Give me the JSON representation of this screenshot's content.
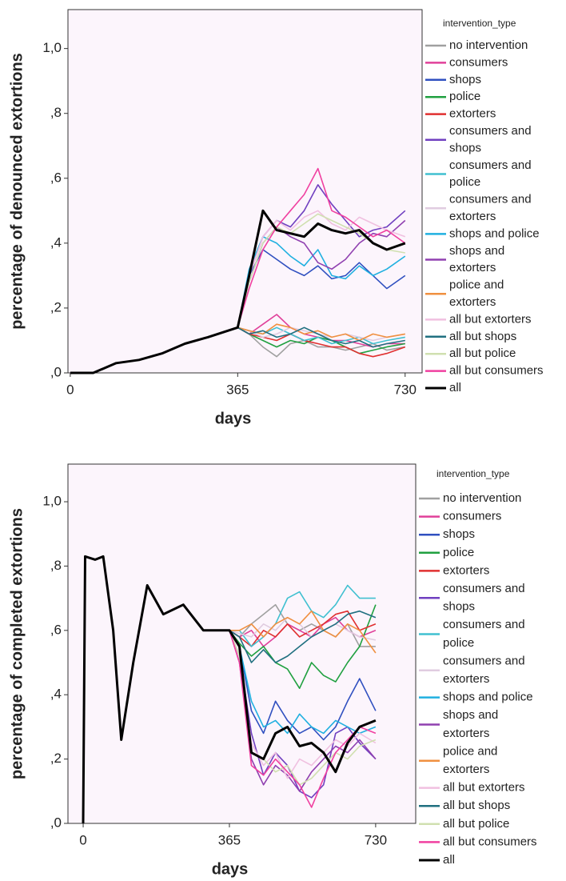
{
  "chart_data": [
    {
      "type": "line",
      "y_label": "percentage of denounced extortions",
      "x_label": "days",
      "legend_title": "intervention_type",
      "xlim": [
        -5,
        767
      ],
      "ylim": [
        0,
        1.12
      ],
      "xticks": [
        0,
        365,
        730
      ],
      "yticks": [
        {
          "value": 0,
          "label": ",0"
        },
        {
          "value": 0.2,
          "label": ",2"
        },
        {
          "value": 0.4,
          "label": ",4"
        },
        {
          "value": 0.6,
          "label": ",6"
        },
        {
          "value": 0.8,
          "label": ",8"
        },
        {
          "value": 1.0,
          "label": "1,0"
        }
      ],
      "x": [
        0,
        50,
        100,
        150,
        200,
        250,
        300,
        365,
        390,
        420,
        450,
        480,
        510,
        540,
        570,
        600,
        630,
        660,
        690,
        730
      ],
      "series": [
        {
          "name": "no intervention",
          "color": "#a0a0a0",
          "values": [
            0,
            0,
            0.03,
            0.04,
            0.06,
            0.09,
            0.11,
            0.14,
            0.12,
            0.08,
            0.05,
            0.09,
            0.1,
            0.08,
            0.08,
            0.07,
            0.08,
            0.09,
            0.07,
            0.08
          ]
        },
        {
          "name": "consumers",
          "color": "#e0409a",
          "values": [
            0,
            0,
            0.03,
            0.04,
            0.06,
            0.09,
            0.11,
            0.14,
            0.12,
            0.15,
            0.18,
            0.14,
            0.12,
            0.11,
            0.1,
            0.1,
            0.09,
            0.08,
            0.09,
            0.09
          ]
        },
        {
          "name": "shops",
          "color": "#3050c0",
          "values": [
            0,
            0,
            0.03,
            0.04,
            0.06,
            0.09,
            0.11,
            0.14,
            0.3,
            0.38,
            0.35,
            0.32,
            0.3,
            0.33,
            0.29,
            0.3,
            0.34,
            0.3,
            0.26,
            0.3
          ]
        },
        {
          "name": "police",
          "color": "#20a040",
          "values": [
            0,
            0,
            0.03,
            0.04,
            0.06,
            0.09,
            0.11,
            0.14,
            0.12,
            0.1,
            0.08,
            0.1,
            0.09,
            0.11,
            0.1,
            0.08,
            0.06,
            0.07,
            0.08,
            0.09
          ]
        },
        {
          "name": "extorters",
          "color": "#e03030",
          "values": [
            0,
            0,
            0.03,
            0.04,
            0.06,
            0.09,
            0.11,
            0.14,
            0.12,
            0.11,
            0.1,
            0.12,
            0.1,
            0.09,
            0.08,
            0.08,
            0.06,
            0.05,
            0.06,
            0.08
          ]
        },
        {
          "name": "consumers and shops",
          "color": "#7040c0",
          "values": [
            0,
            0,
            0.03,
            0.04,
            0.06,
            0.09,
            0.11,
            0.14,
            0.3,
            0.42,
            0.47,
            0.45,
            0.5,
            0.58,
            0.52,
            0.47,
            0.42,
            0.44,
            0.45,
            0.5
          ]
        },
        {
          "name": "consumers and police",
          "color": "#40c0d0",
          "values": [
            0,
            0,
            0.03,
            0.04,
            0.06,
            0.09,
            0.11,
            0.14,
            0.13,
            0.12,
            0.14,
            0.12,
            0.1,
            0.11,
            0.09,
            0.1,
            0.11,
            0.09,
            0.1,
            0.11
          ]
        },
        {
          "name": "consumers and extorters",
          "color": "#e0cce0",
          "values": [
            0,
            0,
            0.03,
            0.04,
            0.06,
            0.09,
            0.11,
            0.14,
            0.13,
            0.11,
            0.12,
            0.14,
            0.13,
            0.12,
            0.11,
            0.12,
            0.11,
            0.1,
            0.11,
            0.12
          ]
        },
        {
          "name": "shops and police",
          "color": "#20b0e0",
          "values": [
            0,
            0,
            0.03,
            0.04,
            0.06,
            0.09,
            0.11,
            0.14,
            0.32,
            0.42,
            0.4,
            0.36,
            0.33,
            0.38,
            0.3,
            0.29,
            0.33,
            0.3,
            0.32,
            0.36
          ]
        },
        {
          "name": "shops and extorters",
          "color": "#9040b0",
          "values": [
            0,
            0,
            0.03,
            0.04,
            0.06,
            0.09,
            0.11,
            0.14,
            0.28,
            0.4,
            0.45,
            0.42,
            0.4,
            0.34,
            0.32,
            0.35,
            0.4,
            0.43,
            0.42,
            0.47
          ]
        },
        {
          "name": "police and extorters",
          "color": "#f09040",
          "values": [
            0,
            0,
            0.03,
            0.04,
            0.06,
            0.09,
            0.11,
            0.14,
            0.13,
            0.12,
            0.15,
            0.14,
            0.12,
            0.13,
            0.11,
            0.12,
            0.1,
            0.12,
            0.11,
            0.12
          ]
        },
        {
          "name": "all but extorters",
          "color": "#f0c0e0",
          "values": [
            0,
            0,
            0.03,
            0.04,
            0.06,
            0.09,
            0.11,
            0.14,
            0.3,
            0.42,
            0.47,
            0.44,
            0.48,
            0.5,
            0.46,
            0.44,
            0.48,
            0.46,
            0.44,
            0.42
          ]
        },
        {
          "name": "all but shops",
          "color": "#207080",
          "values": [
            0,
            0,
            0.03,
            0.04,
            0.06,
            0.09,
            0.11,
            0.14,
            0.12,
            0.13,
            0.11,
            0.12,
            0.14,
            0.12,
            0.1,
            0.09,
            0.1,
            0.08,
            0.09,
            0.1
          ]
        },
        {
          "name": "all but police",
          "color": "#d0e0b0",
          "values": [
            0,
            0,
            0.03,
            0.04,
            0.06,
            0.09,
            0.11,
            0.14,
            0.28,
            0.4,
            0.45,
            0.43,
            0.46,
            0.49,
            0.47,
            0.45,
            0.43,
            0.4,
            0.38,
            0.37
          ]
        },
        {
          "name": "all but consumers",
          "color": "#f040a0",
          "values": [
            0,
            0,
            0.03,
            0.04,
            0.06,
            0.09,
            0.11,
            0.14,
            0.26,
            0.38,
            0.45,
            0.5,
            0.55,
            0.63,
            0.5,
            0.48,
            0.45,
            0.42,
            0.44,
            0.4
          ]
        },
        {
          "name": "all",
          "color": "#000000",
          "values": [
            0,
            0,
            0.03,
            0.04,
            0.06,
            0.09,
            0.11,
            0.14,
            0.3,
            0.5,
            0.44,
            0.43,
            0.42,
            0.46,
            0.44,
            0.43,
            0.44,
            0.4,
            0.38,
            0.4
          ]
        }
      ]
    },
    {
      "type": "line",
      "y_label": "percentage of completed extortions",
      "x_label": "days",
      "legend_title": "intervention_type",
      "xlim": [
        -38,
        830
      ],
      "ylim": [
        0,
        1.117
      ],
      "xticks": [
        0,
        365,
        730
      ],
      "yticks": [
        {
          "value": 0,
          "label": ",0"
        },
        {
          "value": 0.2,
          "label": ",2"
        },
        {
          "value": 0.4,
          "label": ",4"
        },
        {
          "value": 0.6,
          "label": ",6"
        },
        {
          "value": 0.8,
          "label": ",8"
        },
        {
          "value": 1.0,
          "label": "1,0"
        }
      ],
      "x": [
        0,
        5,
        30,
        50,
        75,
        95,
        125,
        160,
        200,
        250,
        300,
        365,
        390,
        420,
        450,
        480,
        510,
        540,
        570,
        600,
        630,
        660,
        690,
        730
      ],
      "series": [
        {
          "name": "no intervention",
          "color": "#a0a0a0",
          "values": [
            0,
            0.83,
            0.82,
            0.83,
            0.6,
            0.26,
            0.5,
            0.74,
            0.65,
            0.68,
            0.6,
            0.6,
            0.58,
            0.62,
            0.65,
            0.68,
            0.62,
            0.6,
            0.62,
            0.6,
            0.58,
            0.62,
            0.55,
            0.55
          ]
        },
        {
          "name": "consumers",
          "color": "#e0409a",
          "values": [
            0,
            0.83,
            0.82,
            0.83,
            0.6,
            0.26,
            0.5,
            0.74,
            0.65,
            0.68,
            0.6,
            0.6,
            0.58,
            0.6,
            0.55,
            0.58,
            0.62,
            0.6,
            0.58,
            0.62,
            0.64,
            0.6,
            0.58,
            0.6
          ]
        },
        {
          "name": "shops",
          "color": "#3050c0",
          "values": [
            0,
            0.83,
            0.82,
            0.83,
            0.6,
            0.26,
            0.5,
            0.74,
            0.65,
            0.68,
            0.6,
            0.6,
            0.55,
            0.35,
            0.28,
            0.38,
            0.32,
            0.28,
            0.3,
            0.26,
            0.3,
            0.38,
            0.45,
            0.35
          ]
        },
        {
          "name": "police",
          "color": "#20a040",
          "values": [
            0,
            0.83,
            0.82,
            0.83,
            0.6,
            0.26,
            0.5,
            0.74,
            0.65,
            0.68,
            0.6,
            0.6,
            0.56,
            0.52,
            0.55,
            0.5,
            0.48,
            0.42,
            0.5,
            0.46,
            0.44,
            0.5,
            0.55,
            0.68
          ]
        },
        {
          "name": "extorters",
          "color": "#e03030",
          "values": [
            0,
            0.83,
            0.82,
            0.83,
            0.6,
            0.26,
            0.5,
            0.74,
            0.65,
            0.68,
            0.6,
            0.6,
            0.58,
            0.55,
            0.6,
            0.58,
            0.62,
            0.58,
            0.6,
            0.62,
            0.65,
            0.66,
            0.6,
            0.62
          ]
        },
        {
          "name": "consumers and shops",
          "color": "#7040c0",
          "values": [
            0,
            0.83,
            0.82,
            0.83,
            0.6,
            0.26,
            0.5,
            0.74,
            0.65,
            0.68,
            0.6,
            0.6,
            0.52,
            0.28,
            0.15,
            0.22,
            0.18,
            0.1,
            0.08,
            0.12,
            0.28,
            0.3,
            0.25,
            0.2
          ]
        },
        {
          "name": "consumers and police",
          "color": "#40c0d0",
          "values": [
            0,
            0.83,
            0.82,
            0.83,
            0.6,
            0.26,
            0.5,
            0.74,
            0.65,
            0.68,
            0.6,
            0.6,
            0.6,
            0.55,
            0.58,
            0.62,
            0.7,
            0.72,
            0.66,
            0.64,
            0.68,
            0.74,
            0.7,
            0.7
          ]
        },
        {
          "name": "consumers and extorters",
          "color": "#e0cce0",
          "values": [
            0,
            0.83,
            0.82,
            0.83,
            0.6,
            0.26,
            0.5,
            0.74,
            0.65,
            0.68,
            0.6,
            0.6,
            0.59,
            0.58,
            0.62,
            0.6,
            0.64,
            0.62,
            0.58,
            0.6,
            0.62,
            0.6,
            0.58,
            0.57
          ]
        },
        {
          "name": "shops and police",
          "color": "#20b0e0",
          "values": [
            0,
            0.83,
            0.82,
            0.83,
            0.6,
            0.26,
            0.5,
            0.74,
            0.65,
            0.68,
            0.6,
            0.6,
            0.55,
            0.38,
            0.3,
            0.32,
            0.28,
            0.34,
            0.3,
            0.28,
            0.32,
            0.3,
            0.28,
            0.3
          ]
        },
        {
          "name": "shops and extorters",
          "color": "#9040b0",
          "values": [
            0,
            0.83,
            0.82,
            0.83,
            0.6,
            0.26,
            0.5,
            0.74,
            0.65,
            0.68,
            0.6,
            0.6,
            0.5,
            0.2,
            0.12,
            0.18,
            0.15,
            0.1,
            0.16,
            0.2,
            0.24,
            0.22,
            0.26,
            0.2
          ]
        },
        {
          "name": "police and extorters",
          "color": "#f09040",
          "values": [
            0,
            0.83,
            0.82,
            0.83,
            0.6,
            0.26,
            0.5,
            0.74,
            0.65,
            0.68,
            0.6,
            0.6,
            0.6,
            0.62,
            0.58,
            0.62,
            0.64,
            0.62,
            0.66,
            0.6,
            0.58,
            0.62,
            0.6,
            0.53
          ]
        },
        {
          "name": "all but extorters",
          "color": "#f0c0e0",
          "values": [
            0,
            0.83,
            0.82,
            0.83,
            0.6,
            0.26,
            0.5,
            0.74,
            0.65,
            0.68,
            0.6,
            0.6,
            0.52,
            0.25,
            0.18,
            0.22,
            0.14,
            0.2,
            0.18,
            0.22,
            0.26,
            0.24,
            0.28,
            0.25
          ]
        },
        {
          "name": "all but shops",
          "color": "#207080",
          "values": [
            0,
            0.83,
            0.82,
            0.83,
            0.6,
            0.26,
            0.5,
            0.74,
            0.65,
            0.68,
            0.6,
            0.6,
            0.58,
            0.5,
            0.54,
            0.5,
            0.52,
            0.55,
            0.58,
            0.6,
            0.62,
            0.65,
            0.66,
            0.64
          ]
        },
        {
          "name": "all but police",
          "color": "#d0e0b0",
          "values": [
            0,
            0.83,
            0.82,
            0.83,
            0.6,
            0.26,
            0.5,
            0.74,
            0.65,
            0.68,
            0.6,
            0.6,
            0.52,
            0.22,
            0.2,
            0.16,
            0.18,
            0.12,
            0.14,
            0.18,
            0.22,
            0.2,
            0.24,
            0.26
          ]
        },
        {
          "name": "all but consumers",
          "color": "#f040a0",
          "values": [
            0,
            0.83,
            0.82,
            0.83,
            0.6,
            0.26,
            0.5,
            0.74,
            0.65,
            0.68,
            0.6,
            0.6,
            0.5,
            0.18,
            0.15,
            0.2,
            0.16,
            0.12,
            0.05,
            0.14,
            0.22,
            0.26,
            0.3,
            0.28
          ]
        },
        {
          "name": "all",
          "color": "#000000",
          "values": [
            0,
            0.83,
            0.82,
            0.83,
            0.6,
            0.26,
            0.5,
            0.74,
            0.65,
            0.68,
            0.6,
            0.6,
            0.55,
            0.22,
            0.2,
            0.28,
            0.3,
            0.24,
            0.25,
            0.22,
            0.16,
            0.25,
            0.3,
            0.32
          ]
        }
      ]
    }
  ]
}
